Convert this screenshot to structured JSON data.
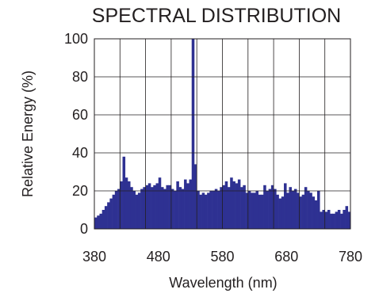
{
  "chart_data": {
    "type": "bar",
    "title": "SPECTRAL DISTRIBUTION",
    "xlabel": "Wavelength (nm)",
    "ylabel": "Relative Energy (%)",
    "xlim": [
      380,
      780
    ],
    "ylim": [
      0,
      100
    ],
    "xticks": [
      380,
      480,
      580,
      680,
      780
    ],
    "xtick_labels": [
      "380",
      "480",
      "580",
      "680",
      "780"
    ],
    "yticks": [
      0,
      20,
      40,
      60,
      80,
      100
    ],
    "ytick_labels": [
      "0",
      "20",
      "40",
      "60",
      "80",
      "100"
    ],
    "grid": true,
    "bar_color": "#2e3192",
    "bin_width_nm": 4,
    "x": [
      380,
      384,
      388,
      392,
      396,
      400,
      404,
      408,
      412,
      416,
      420,
      424,
      428,
      432,
      436,
      440,
      444,
      448,
      452,
      456,
      460,
      464,
      468,
      472,
      476,
      480,
      484,
      488,
      492,
      496,
      500,
      504,
      508,
      512,
      516,
      520,
      524,
      528,
      532,
      536,
      540,
      544,
      548,
      552,
      556,
      560,
      564,
      568,
      572,
      576,
      580,
      584,
      588,
      592,
      596,
      600,
      604,
      608,
      612,
      616,
      620,
      624,
      628,
      632,
      636,
      640,
      644,
      648,
      652,
      656,
      660,
      664,
      668,
      672,
      676,
      680,
      684,
      688,
      692,
      696,
      700,
      704,
      708,
      712,
      716,
      720,
      724,
      728,
      732,
      736,
      740,
      744,
      748,
      752,
      756,
      760,
      764,
      768,
      772,
      776
    ],
    "values": [
      6,
      7,
      8,
      10,
      12,
      14,
      16,
      18,
      20,
      21,
      25,
      38,
      27,
      25,
      22,
      20,
      18,
      19,
      21,
      22,
      23,
      24,
      22,
      23,
      24,
      27,
      22,
      21,
      23,
      23,
      21,
      20,
      25,
      22,
      21,
      26,
      24,
      26,
      100,
      34,
      20,
      18,
      19,
      18,
      19,
      20,
      20,
      21,
      20,
      22,
      23,
      25,
      22,
      27,
      25,
      24,
      26,
      22,
      23,
      19,
      20,
      19,
      19,
      20,
      18,
      18,
      23,
      20,
      21,
      23,
      21,
      18,
      16,
      17,
      24,
      19,
      22,
      20,
      21,
      19,
      17,
      18,
      22,
      20,
      19,
      17,
      15,
      20,
      9,
      10,
      9,
      10,
      8,
      8,
      9,
      10,
      8,
      10,
      12,
      9
    ]
  }
}
